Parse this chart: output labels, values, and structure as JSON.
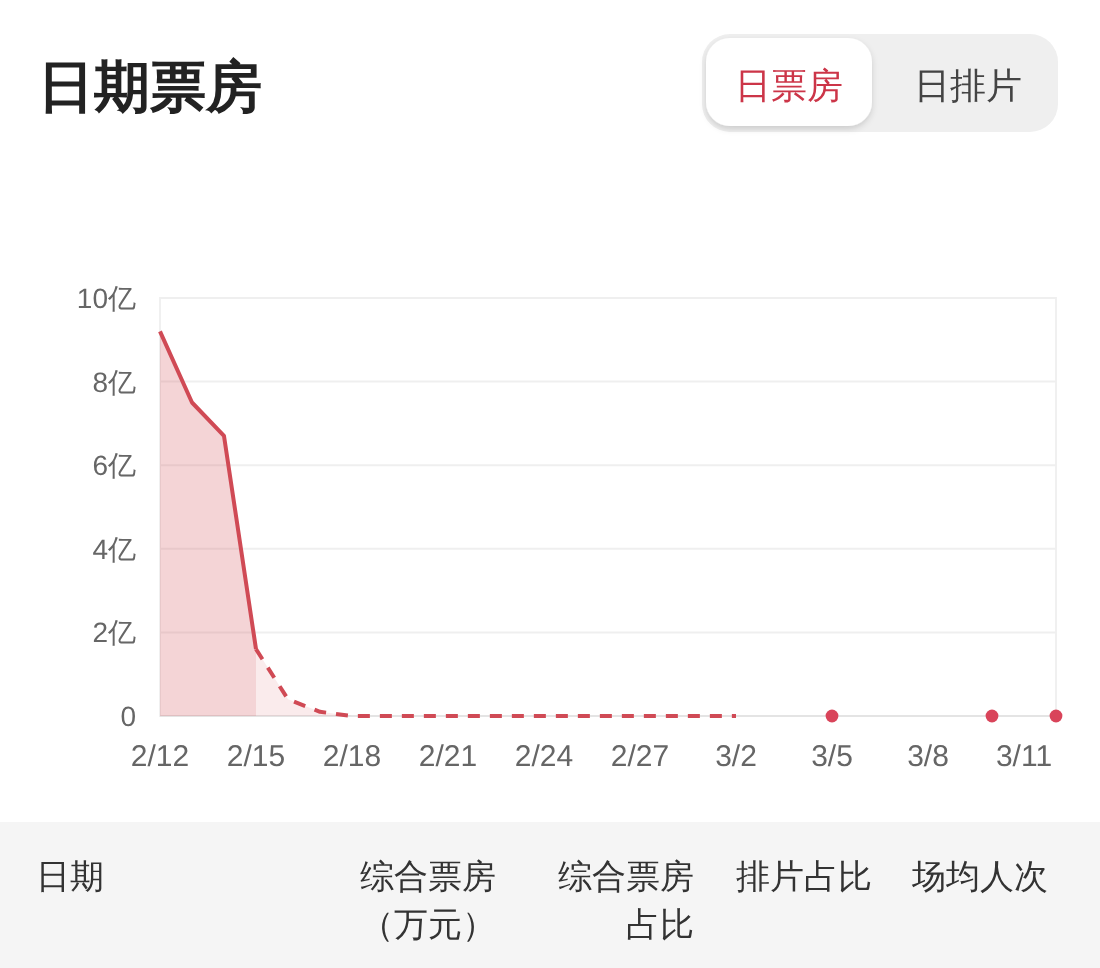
{
  "chart_data": {
    "type": "area",
    "title": "日期票房",
    "annotations": [
      "日票房",
      "日排片",
      "日期",
      "综合票房（万元）",
      "综合票房占比",
      "排片占比",
      "场均人次"
    ],
    "xlim": [
      "--02-12",
      "--03-12"
    ],
    "xticks": [
      {
        "value": "--02-12",
        "label": "2/12"
      },
      {
        "value": "--02-15",
        "label": "2/15"
      },
      {
        "value": "--02-18",
        "label": "2/18"
      },
      {
        "value": "--02-21",
        "label": "2/21"
      },
      {
        "value": "--02-24",
        "label": "2/24"
      },
      {
        "value": "--02-27",
        "label": "2/27"
      },
      {
        "value": "--03-02",
        "label": "3/2"
      },
      {
        "value": "--03-05",
        "label": "3/5"
      },
      {
        "value": "--03-08",
        "label": "3/8"
      },
      {
        "value": "--03-11",
        "label": "3/11"
      }
    ],
    "ylim": [
      0,
      10
    ],
    "yticks": [
      0,
      {
        "value": 2,
        "label": "2亿"
      },
      {
        "value": 4,
        "label": "4亿"
      },
      {
        "value": 6,
        "label": "6亿"
      },
      {
        "value": 8,
        "label": "8亿"
      },
      {
        "value": 10,
        "label": "10亿"
      }
    ],
    "grid": "y",
    "series": [
      {
        "color": "#d04a55",
        "line_style": "solid",
        "x": [
          "--02-12",
          "--02-13",
          "--02-14",
          "--02-15"
        ],
        "values": [
          9.2,
          7.5,
          6.7,
          1.6
        ]
      },
      {
        "color": "#d04a55",
        "line_style": "dashed",
        "x": [
          "--02-15",
          "--02-16",
          "--02-17",
          "--02-18",
          "--02-19",
          "--02-20",
          "--02-21",
          "--02-22",
          "--02-23",
          "--02-24",
          "--02-25",
          "--02-26",
          "--02-27",
          "--02-28",
          "--03-01",
          "--03-02"
        ],
        "values": [
          1.6,
          0.4,
          0.1,
          0,
          0,
          0,
          0,
          0,
          0,
          0,
          0,
          0,
          0,
          0,
          0,
          0
        ]
      },
      {
        "type": "scatter",
        "color": "#d9445a",
        "marker": "circle",
        "x": [
          "--03-05",
          "--03-10",
          "--03-12"
        ],
        "values": [
          0,
          0,
          0
        ]
      }
    ]
  }
}
